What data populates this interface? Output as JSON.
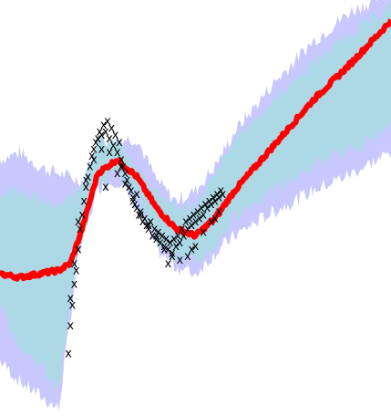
{
  "chart_data": {
    "type": "line",
    "title": "",
    "xlabel": "",
    "ylabel": "",
    "grid": false,
    "legend": "none",
    "axes_visible": false,
    "xlim": [
      0,
      10
    ],
    "ylim": [
      -2.5,
      3.5
    ],
    "series": [
      {
        "role": "outer-band",
        "color": "#c8c8ff",
        "x": [
          0,
          0.5,
          1.0,
          1.5,
          2.0,
          2.5,
          3.0,
          3.5,
          4.0,
          4.5,
          5.0,
          5.5,
          6.0,
          7.0,
          8.0,
          9.0,
          10.0
        ],
        "upper": [
          1.2,
          1.3,
          1.1,
          1.0,
          0.9,
          1.0,
          1.5,
          1.5,
          0.9,
          0.6,
          0.75,
          1.1,
          1.6,
          2.3,
          2.9,
          3.35,
          3.6
        ],
        "lower": [
          -1.7,
          -2.0,
          -2.2,
          -2.4,
          -0.2,
          0.8,
          0.9,
          0.5,
          -0.1,
          -0.35,
          -0.45,
          -0.15,
          0.1,
          0.45,
          0.75,
          1.0,
          1.3
        ]
      },
      {
        "role": "inner-band",
        "color": "#add8e6",
        "x": [
          0,
          0.5,
          1.0,
          1.5,
          2.0,
          2.5,
          3.0,
          3.5,
          4.0,
          4.5,
          5.0,
          5.5,
          6.0,
          7.0,
          8.0,
          9.0,
          10.0
        ],
        "upper": [
          0.7,
          0.8,
          0.6,
          0.5,
          0.75,
          1.5,
          1.45,
          1.05,
          0.75,
          0.5,
          0.55,
          0.95,
          1.5,
          2.05,
          2.6,
          3.05,
          3.4
        ],
        "lower": [
          -0.9,
          -1.5,
          -1.75,
          -2.1,
          -0.1,
          0.85,
          1.0,
          0.7,
          0.05,
          -0.2,
          -0.3,
          -0.05,
          0.4,
          0.75,
          1.1,
          1.35,
          1.65
        ]
      },
      {
        "role": "mean",
        "color": "#ff0000",
        "x": [
          0,
          0.5,
          1.0,
          1.5,
          1.8,
          2.1,
          2.5,
          3.0,
          3.5,
          4.0,
          4.5,
          5.0,
          5.5,
          6.0,
          7.0,
          8.0,
          9.0,
          10.0
        ],
        "y": [
          -0.45,
          -0.5,
          -0.45,
          -0.4,
          -0.3,
          0.2,
          1.0,
          1.2,
          0.95,
          0.5,
          0.2,
          0.1,
          0.35,
          0.75,
          1.4,
          2.05,
          2.6,
          3.2
        ]
      }
    ],
    "observations": {
      "marker": "x",
      "color": "#000000",
      "x": [
        1.75,
        1.8,
        1.85,
        1.9,
        1.95,
        2.0,
        2.05,
        2.1,
        2.15,
        2.2,
        2.25,
        2.3,
        2.35,
        2.4,
        2.45,
        2.5,
        2.55,
        2.6,
        2.65,
        2.7,
        2.75,
        2.8,
        2.85,
        2.9,
        2.95,
        3.0,
        3.05,
        3.1,
        3.15,
        3.2,
        3.25,
        3.3,
        3.35,
        3.4,
        3.45,
        3.5,
        3.55,
        3.6,
        3.65,
        3.7,
        3.75,
        3.8,
        3.85,
        3.9,
        3.95,
        4.0,
        4.05,
        4.1,
        4.15,
        4.2,
        4.25,
        4.3,
        4.35,
        4.4,
        4.45,
        4.5,
        4.55,
        4.6,
        4.65,
        4.7,
        4.75,
        4.8,
        4.85,
        4.9,
        4.95,
        5.0,
        5.05,
        5.1,
        5.15,
        5.2,
        5.25,
        5.3,
        5.35,
        5.4,
        5.45,
        5.5,
        5.55,
        5.6,
        5.65,
        5.7,
        1.8,
        1.9,
        2.0,
        2.2,
        2.4,
        2.6,
        2.8,
        3.0,
        3.2,
        3.4,
        3.6,
        3.8,
        4.0,
        4.2,
        4.4,
        4.6,
        4.8,
        5.0,
        5.2,
        5.4,
        5.6,
        2.7,
        3.1,
        3.5,
        4.3,
        4.9,
        5.5
      ],
      "y": [
        -1.6,
        -1.2,
        -0.9,
        -0.6,
        -0.4,
        -0.1,
        0.2,
        0.4,
        0.6,
        0.8,
        0.95,
        1.1,
        1.25,
        1.35,
        1.45,
        1.5,
        1.6,
        1.55,
        1.7,
        1.6,
        1.75,
        1.5,
        1.65,
        1.4,
        1.55,
        1.3,
        1.45,
        1.2,
        1.1,
        1.0,
        0.9,
        0.8,
        0.75,
        0.65,
        0.55,
        0.5,
        0.4,
        0.45,
        0.3,
        0.35,
        0.25,
        0.2,
        0.3,
        0.1,
        0.2,
        0.05,
        0.15,
        0.0,
        0.1,
        -0.05,
        0.05,
        -0.1,
        0.0,
        -0.15,
        0.05,
        -0.05,
        0.1,
        0.0,
        0.2,
        0.1,
        0.3,
        0.2,
        0.35,
        0.25,
        0.4,
        0.3,
        0.45,
        0.35,
        0.5,
        0.4,
        0.55,
        0.5,
        0.6,
        0.55,
        0.65,
        0.6,
        0.7,
        0.65,
        0.75,
        0.7,
        -0.8,
        -0.3,
        0.3,
        0.9,
        1.2,
        1.35,
        1.3,
        1.0,
        0.85,
        0.6,
        0.4,
        0.25,
        0.1,
        -0.1,
        -0.2,
        -0.25,
        -0.2,
        -0.05,
        0.15,
        0.3,
        0.45,
        0.8,
        1.1,
        0.7,
        -0.3,
        -0.1,
        0.35
      ]
    }
  }
}
